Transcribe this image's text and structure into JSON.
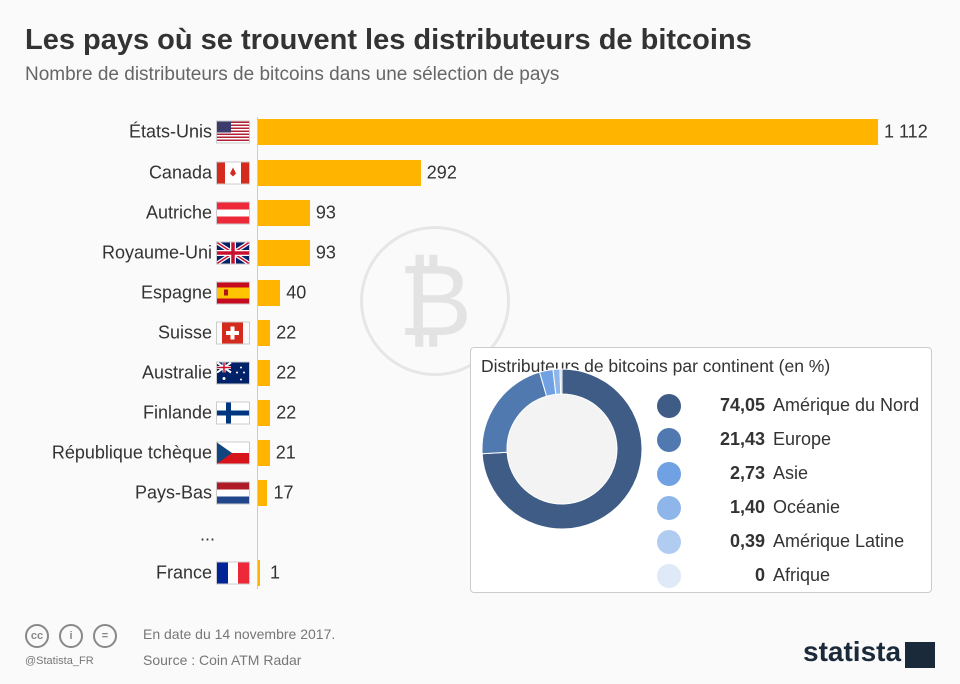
{
  "title": "Les pays où se trouvent les distributeurs de bitcoins",
  "subtitle": "Nombre de distributeurs de bitcoins dans une sélection de pays",
  "chart_data": [
    {
      "type": "bar",
      "orientation": "horizontal",
      "categories": [
        "États-Unis",
        "Canada",
        "Autriche",
        "Royaume-Uni",
        "Espagne",
        "Suisse",
        "Australie",
        "Finlande",
        "République tchèque",
        "Pays-Bas",
        "...",
        "France"
      ],
      "values": [
        1112,
        292,
        93,
        93,
        40,
        22,
        22,
        22,
        21,
        17,
        null,
        1
      ],
      "value_labels": [
        "1 112",
        "292",
        "93",
        "93",
        "40",
        "22",
        "22",
        "22",
        "21",
        "17",
        "",
        "1"
      ],
      "flags": [
        "us",
        "ca",
        "at",
        "gb",
        "es",
        "ch",
        "au",
        "fi",
        "cz",
        "nl",
        "",
        "fr"
      ],
      "bar_color": "#ffb400"
    },
    {
      "type": "pie",
      "donut": true,
      "title": "Distributeurs de bitcoins par continent (en %)",
      "categories": [
        "Amérique du Nord",
        "Europe",
        "Asie",
        "Océanie",
        "Amérique Latine",
        "Afrique"
      ],
      "values": [
        74.05,
        21.43,
        2.73,
        1.4,
        0.39,
        0
      ],
      "value_labels": [
        "74,05",
        "21,43",
        "2,73",
        "1,40",
        "0,39",
        "0"
      ],
      "colors": [
        "#3e5c85",
        "#5079af",
        "#6fa1e3",
        "#8eb6ea",
        "#b0cdf1",
        "#dfe9f7"
      ]
    }
  ],
  "footer": {
    "date": "En date du 14 novembre 2017.",
    "source": "Source : Coin ATM Radar",
    "handle": "@Statista_FR",
    "license_icons": [
      "cc",
      "by",
      "="
    ],
    "logo": "statista"
  }
}
